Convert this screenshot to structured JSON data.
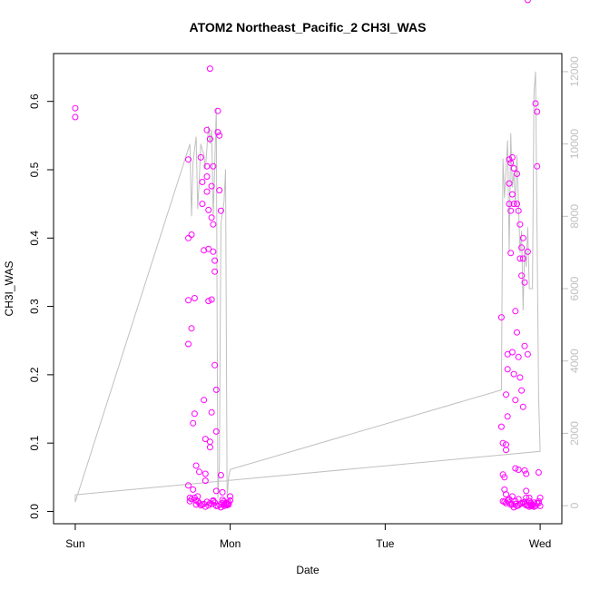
{
  "chart_data": {
    "type": "scatter",
    "title": "ATOM2 Northeast_Pacific_2 CH3I_WAS",
    "xlabel": "Date",
    "ylabel": "CH3I_WAS",
    "x_ticks": [
      "Sun",
      "Mon",
      "Tue",
      "Wed"
    ],
    "xlim_days": [
      -0.14,
      3.14
    ],
    "ylim": [
      -0.018,
      0.67
    ],
    "y_ticks": [
      0.0,
      0.1,
      0.2,
      0.3,
      0.4,
      0.5,
      0.6
    ],
    "y2lim": [
      -500,
      12500
    ],
    "y2_ticks": [
      0,
      2000,
      4000,
      6000,
      8000,
      10000,
      12000
    ],
    "point_color": "#ff00ff",
    "line_color": "#c0c0c0",
    "points_x_days": [
      0.0,
      0.0,
      0.73,
      0.73,
      0.73,
      0.73,
      0.73,
      0.74,
      0.74,
      0.75,
      0.75,
      0.76,
      0.76,
      0.77,
      0.77,
      0.78,
      0.78,
      0.78,
      0.79,
      0.8,
      0.81,
      0.82,
      0.82,
      0.83,
      0.83,
      0.84,
      0.84,
      0.84,
      0.85,
      0.85,
      0.85,
      0.85,
      0.86,
      0.86,
      0.86,
      0.87,
      0.87,
      0.87,
      0.87,
      0.88,
      0.88,
      0.88,
      0.88,
      0.89,
      0.89,
      0.89,
      0.89,
      0.9,
      0.9,
      0.9,
      0.91,
      0.91,
      0.91,
      0.92,
      0.92,
      0.93,
      0.93,
      0.94,
      0.94,
      0.95,
      0.95,
      0.96,
      0.96,
      0.97,
      0.97,
      0.98,
      0.98,
      0.99,
      1.0,
      1.0,
      0.8,
      0.82,
      0.84,
      0.86,
      0.88,
      0.9,
      0.92,
      0.94,
      0.96,
      0.98,
      0.75,
      0.77,
      0.79,
      0.81,
      0.83,
      0.85,
      0.87,
      0.89,
      0.91,
      0.93,
      0.95,
      0.97,
      0.99,
      2.75,
      2.75,
      2.76,
      2.76,
      2.77,
      2.77,
      2.78,
      2.78,
      2.78,
      2.79,
      2.79,
      2.79,
      2.8,
      2.8,
      2.8,
      2.81,
      2.81,
      2.81,
      2.82,
      2.82,
      2.82,
      2.83,
      2.83,
      2.83,
      2.84,
      2.84,
      2.84,
      2.85,
      2.85,
      2.85,
      2.86,
      2.86,
      2.86,
      2.87,
      2.87,
      2.87,
      2.88,
      2.88,
      2.88,
      2.89,
      2.89,
      2.89,
      2.9,
      2.9,
      2.9,
      2.91,
      2.91,
      2.91,
      2.92,
      2.92,
      2.93,
      2.93,
      2.94,
      2.94,
      2.95,
      2.95,
      2.96,
      2.97,
      2.98,
      2.98,
      2.99,
      2.99,
      3.0,
      3.0,
      2.76,
      2.78,
      2.8,
      2.82,
      2.84,
      2.86,
      2.88,
      2.9,
      2.92,
      2.94,
      2.96,
      2.98,
      2.77,
      2.79,
      2.81,
      2.83,
      2.85,
      2.87,
      2.89,
      2.91,
      2.93,
      2.95,
      2.97,
      2.99,
      2.78,
      2.8,
      2.82,
      2.84,
      2.86,
      2.88,
      2.9,
      2.92
    ],
    "points_y": [
      0.59,
      0.577,
      0.515,
      0.4,
      0.309,
      0.245,
      0.038,
      0.02,
      0.015,
      0.405,
      0.268,
      0.129,
      0.032,
      0.312,
      0.143,
      0.067,
      0.016,
      0.01,
      0.022,
      0.058,
      0.518,
      0.482,
      0.45,
      0.382,
      0.163,
      0.106,
      0.055,
      0.045,
      0.558,
      0.505,
      0.49,
      0.468,
      0.441,
      0.384,
      0.308,
      0.102,
      0.094,
      0.648,
      0.545,
      0.476,
      0.43,
      0.31,
      0.145,
      0.015,
      0.505,
      0.42,
      0.38,
      0.367,
      0.351,
      0.214,
      0.178,
      0.117,
      0.03,
      0.586,
      0.555,
      0.55,
      0.47,
      0.44,
      0.053,
      0.028,
      0.012,
      0.008,
      0.015,
      0.01,
      0.012,
      0.011,
      0.009,
      0.013,
      0.016,
      0.022,
      0.012,
      0.01,
      0.007,
      0.009,
      0.011,
      0.013,
      0.008,
      0.006,
      0.01,
      0.012,
      0.018,
      0.02,
      0.015,
      0.009,
      0.011,
      0.014,
      0.012,
      0.016,
      0.008,
      0.01,
      0.017,
      0.012,
      0.01,
      0.284,
      0.124,
      0.1,
      0.054,
      0.05,
      0.032,
      0.171,
      0.098,
      0.09,
      0.23,
      0.208,
      0.139,
      0.515,
      0.48,
      0.45,
      0.51,
      0.44,
      0.378,
      0.518,
      0.464,
      0.233,
      0.502,
      0.45,
      0.201,
      0.293,
      0.163,
      0.063,
      0.494,
      0.45,
      0.262,
      0.44,
      0.226,
      0.061,
      0.42,
      0.37,
      0.196,
      0.386,
      0.345,
      0.177,
      0.4,
      0.37,
      0.153,
      0.335,
      0.242,
      0.06,
      0.055,
      0.03,
      0.02,
      0.38,
      0.23,
      0.02,
      0.015,
      0.01,
      0.012,
      0.008,
      0.01,
      0.013,
      0.597,
      0.585,
      0.505,
      0.057,
      0.012,
      0.008,
      0.02,
      0.015,
      0.025,
      0.013,
      0.01,
      0.015,
      0.018,
      0.012,
      0.011,
      0.009,
      0.008,
      0.007,
      0.012,
      0.014,
      0.016,
      0.01,
      0.006,
      0.008,
      0.011,
      0.013,
      0.009,
      0.007,
      0.01,
      0.008,
      0.015,
      0.012,
      0.018,
      0.022,
      0.011,
      0.009,
      0.012,
      0.014
    ],
    "line2_x_days": [
      0.0,
      0.0,
      0.74,
      0.75,
      0.76,
      0.78,
      0.79,
      0.8,
      0.81,
      0.83,
      0.84,
      0.86,
      0.87,
      0.88,
      0.89,
      0.9,
      0.91,
      0.92,
      0.93,
      0.94,
      0.96,
      0.97,
      0.98,
      0.99,
      1.0,
      2.75,
      2.76,
      2.77,
      2.79,
      2.8,
      2.81,
      2.82,
      2.83,
      2.84,
      2.85,
      2.87,
      2.88,
      2.89,
      2.9,
      2.91,
      2.92,
      2.93,
      2.95,
      2.96,
      2.97,
      2.99,
      3.0,
      0.0
    ],
    "line2_y": [
      300,
      100,
      10000,
      8000,
      9500,
      10200,
      8200,
      9000,
      10000,
      9700,
      9300,
      10500,
      10000,
      10400,
      8000,
      9400,
      11000,
      200,
      1100,
      7800,
      8400,
      9300,
      200,
      800,
      1000,
      3200,
      9600,
      8500,
      10100,
      7000,
      10300,
      8800,
      9200,
      8300,
      9700,
      7000,
      7600,
      5400,
      7100,
      6600,
      7700,
      6000,
      6000,
      11400,
      12000,
      3000,
      1500,
      300
    ]
  }
}
